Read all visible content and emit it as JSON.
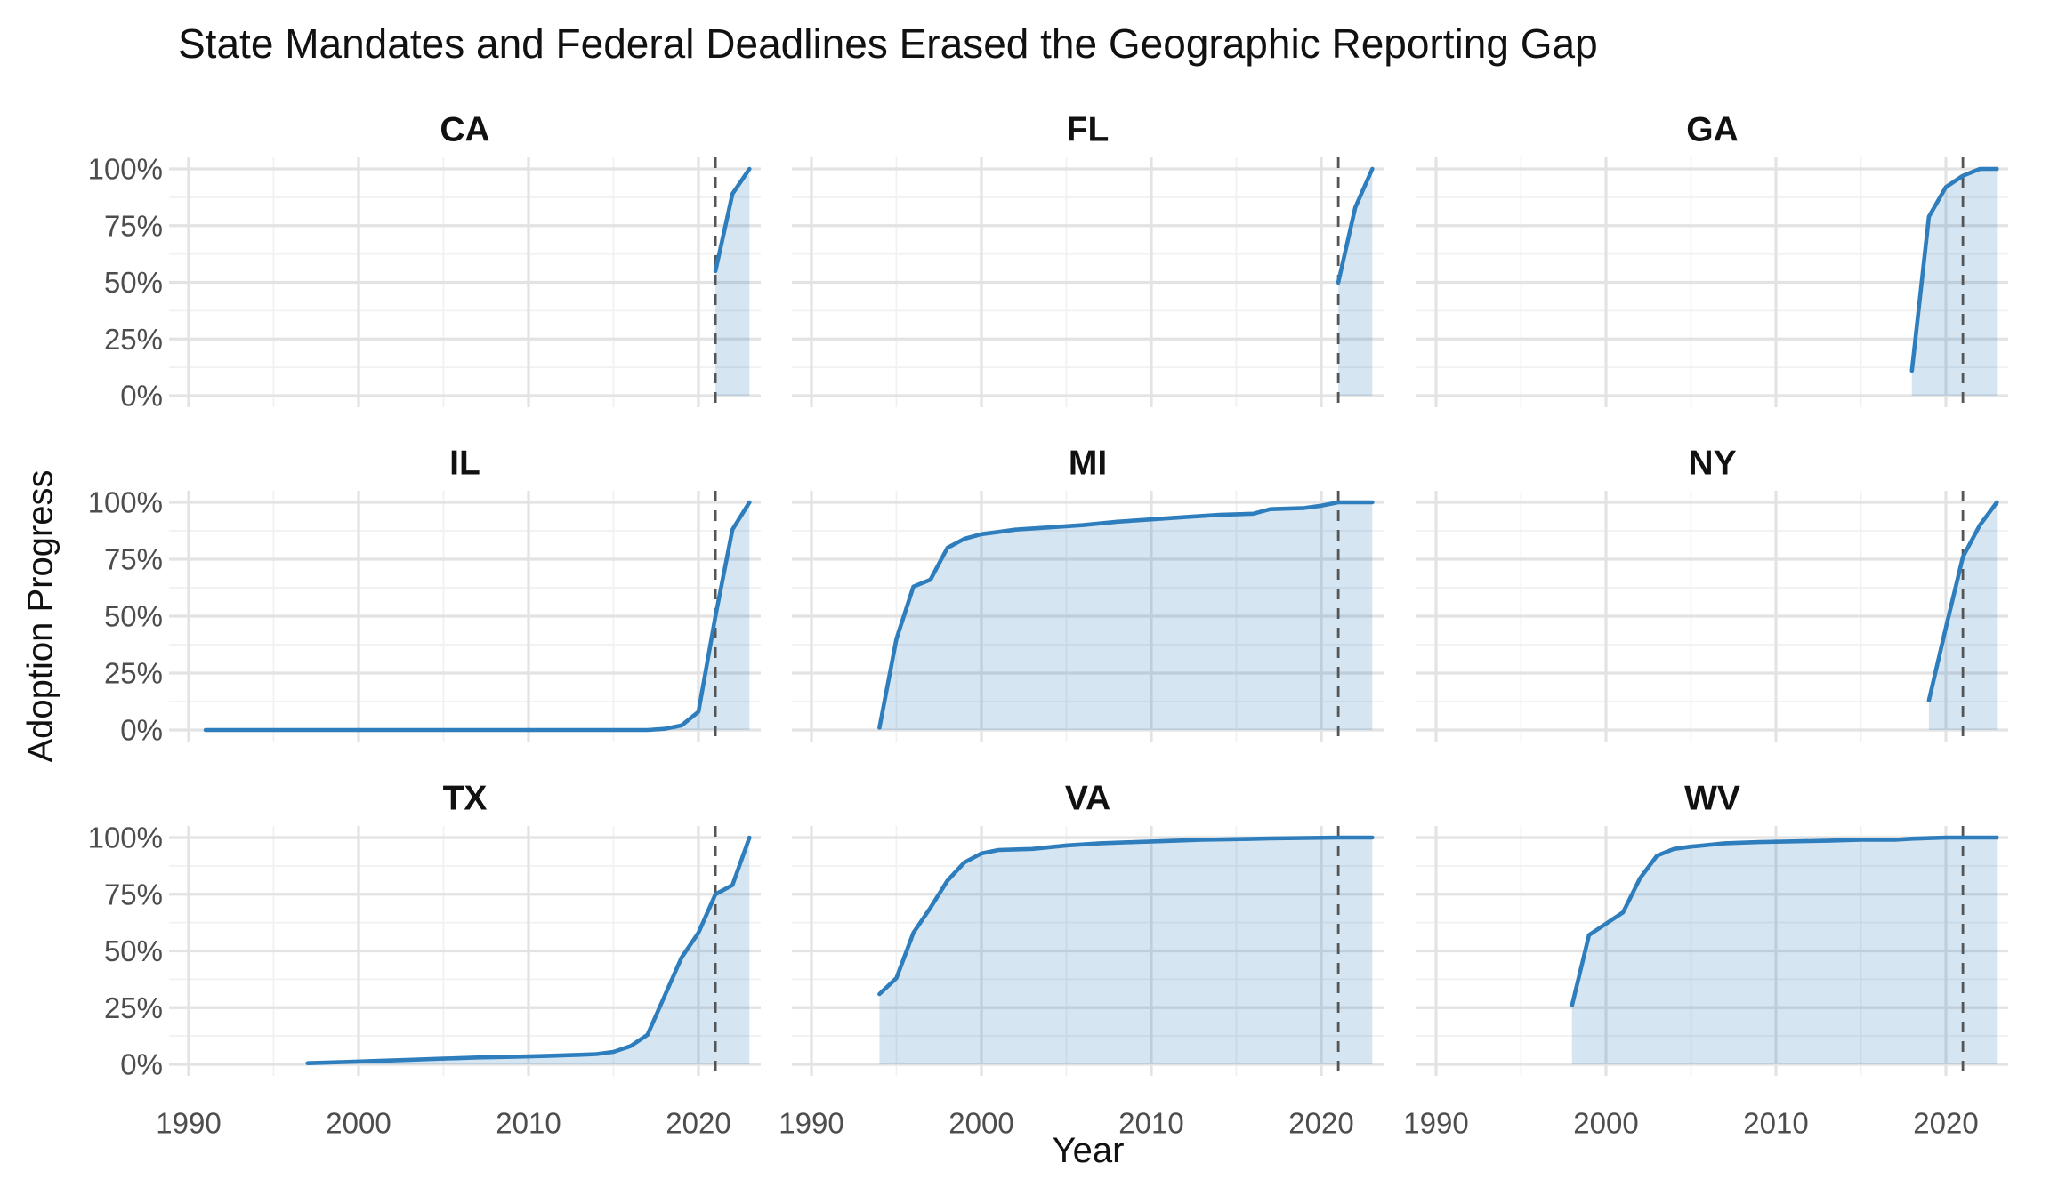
{
  "chart_data": {
    "type": "area",
    "title": "State Mandates and Federal Deadlines Erased the Geographic Reporting Gap",
    "xlabel": "Year",
    "ylabel": "Adoption Progress",
    "x_ticks": [
      1990,
      2000,
      2010,
      2020
    ],
    "x_minor": [
      1995,
      2005,
      2015
    ],
    "x_domain": [
      1988.8,
      2023.7
    ],
    "y_domain": [
      -5,
      105
    ],
    "y_ticks": [
      {
        "value": 0,
        "label": "0%"
      },
      {
        "value": 25,
        "label": "25%"
      },
      {
        "value": 50,
        "label": "50%"
      },
      {
        "value": 75,
        "label": "75%"
      },
      {
        "value": 100,
        "label": "100%"
      }
    ],
    "y_minor": [
      12.5,
      37.5,
      62.5,
      87.5
    ],
    "grid": "major+minor",
    "legend": false,
    "reference_line": {
      "x": 2021,
      "style": "dashed"
    },
    "colors": {
      "line": "#2e7dbc",
      "fill": "rgba(46,125,188,0.2)",
      "grid_major": "#e3e3e3",
      "grid_minor": "#f1f1f1",
      "reference": "#555555",
      "tick_label": "#4d4d4d",
      "text": "#111111"
    },
    "facets": [
      {
        "state": "CA",
        "series": [
          [
            2021,
            55
          ],
          [
            2022,
            89
          ],
          [
            2023,
            100
          ]
        ]
      },
      {
        "state": "FL",
        "series": [
          [
            2021,
            50
          ],
          [
            2022,
            83
          ],
          [
            2023,
            100
          ]
        ]
      },
      {
        "state": "GA",
        "series": [
          [
            2018,
            11
          ],
          [
            2019,
            79
          ],
          [
            2020,
            92
          ],
          [
            2021,
            97
          ],
          [
            2022,
            100
          ],
          [
            2023,
            100
          ]
        ]
      },
      {
        "state": "IL",
        "series": [
          [
            1991,
            0
          ],
          [
            1995,
            0
          ],
          [
            2000,
            0
          ],
          [
            2005,
            0
          ],
          [
            2010,
            0
          ],
          [
            2015,
            0
          ],
          [
            2017,
            0
          ],
          [
            2018,
            0.5
          ],
          [
            2019,
            2
          ],
          [
            2020,
            8
          ],
          [
            2021,
            50
          ],
          [
            2022,
            88
          ],
          [
            2023,
            100
          ]
        ]
      },
      {
        "state": "MI",
        "series": [
          [
            1994,
            1
          ],
          [
            1995,
            40
          ],
          [
            1996,
            63
          ],
          [
            1997,
            66
          ],
          [
            1998,
            80
          ],
          [
            1999,
            84
          ],
          [
            2000,
            86
          ],
          [
            2001,
            87
          ],
          [
            2002,
            88
          ],
          [
            2004,
            89
          ],
          [
            2006,
            90
          ],
          [
            2008,
            91.5
          ],
          [
            2010,
            92.5
          ],
          [
            2012,
            93.5
          ],
          [
            2014,
            94.5
          ],
          [
            2016,
            95
          ],
          [
            2017,
            97
          ],
          [
            2019,
            97.5
          ],
          [
            2020,
            98.5
          ],
          [
            2021,
            100
          ],
          [
            2023,
            100
          ]
        ]
      },
      {
        "state": "NY",
        "series": [
          [
            2019,
            13
          ],
          [
            2020,
            45
          ],
          [
            2021,
            76
          ],
          [
            2022,
            90
          ],
          [
            2023,
            100
          ]
        ]
      },
      {
        "state": "TX",
        "series": [
          [
            1997,
            0.5
          ],
          [
            1999,
            1
          ],
          [
            2001,
            1.5
          ],
          [
            2003,
            2
          ],
          [
            2005,
            2.5
          ],
          [
            2007,
            3
          ],
          [
            2009,
            3.3
          ],
          [
            2011,
            3.7
          ],
          [
            2013,
            4.2
          ],
          [
            2014,
            4.5
          ],
          [
            2015,
            5.5
          ],
          [
            2016,
            8
          ],
          [
            2017,
            13
          ],
          [
            2018,
            30
          ],
          [
            2019,
            47
          ],
          [
            2020,
            58
          ],
          [
            2021,
            75
          ],
          [
            2022,
            79
          ],
          [
            2023,
            100
          ]
        ]
      },
      {
        "state": "VA",
        "series": [
          [
            1994,
            31
          ],
          [
            1995,
            38
          ],
          [
            1996,
            58
          ],
          [
            1997,
            69
          ],
          [
            1998,
            81
          ],
          [
            1999,
            89
          ],
          [
            2000,
            93
          ],
          [
            2001,
            94.5
          ],
          [
            2003,
            95
          ],
          [
            2005,
            96.5
          ],
          [
            2007,
            97.5
          ],
          [
            2009,
            98
          ],
          [
            2011,
            98.5
          ],
          [
            2013,
            99
          ],
          [
            2015,
            99.3
          ],
          [
            2017,
            99.6
          ],
          [
            2019,
            99.8
          ],
          [
            2021,
            100
          ],
          [
            2023,
            100
          ]
        ]
      },
      {
        "state": "WV",
        "series": [
          [
            1998,
            26
          ],
          [
            1999,
            57
          ],
          [
            2000,
            62
          ],
          [
            2001,
            67
          ],
          [
            2002,
            82
          ],
          [
            2003,
            92
          ],
          [
            2004,
            95
          ],
          [
            2005,
            96
          ],
          [
            2007,
            97.5
          ],
          [
            2009,
            98
          ],
          [
            2011,
            98.3
          ],
          [
            2013,
            98.6
          ],
          [
            2015,
            99
          ],
          [
            2017,
            99
          ],
          [
            2018,
            99.5
          ],
          [
            2020,
            100
          ],
          [
            2023,
            100
          ]
        ]
      }
    ]
  }
}
